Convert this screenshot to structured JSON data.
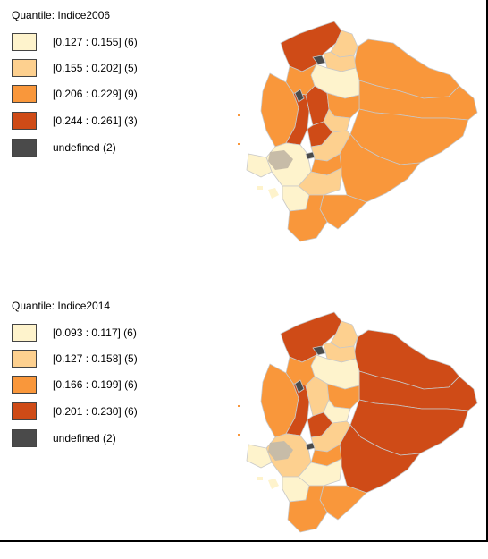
{
  "colors": {
    "class1": "#fef3cc",
    "class2": "#fdd08f",
    "class3": "#f9973b",
    "class4": "#cf4b17",
    "undefined": "#4a4a4a"
  },
  "maps": [
    {
      "legend": {
        "title": "Quantile: Indice2006",
        "items": [
          {
            "label": "[0.127 : 0.155] (6)",
            "color": "#fef3cc"
          },
          {
            "label": "[0.155 : 0.202] (5)",
            "color": "#fdd08f"
          },
          {
            "label": "[0.206 : 0.229] (9)",
            "color": "#f9973b"
          },
          {
            "label": "[0.244 : 0.261] (3)",
            "color": "#cf4b17"
          },
          {
            "label": "undefined (2)",
            "color": "#4a4a4a"
          }
        ]
      }
    },
    {
      "legend": {
        "title": "Quantile: Indice2014",
        "items": [
          {
            "label": "[0.093 : 0.117] (6)",
            "color": "#fef3cc"
          },
          {
            "label": "[0.127 : 0.158] (5)",
            "color": "#fdd08f"
          },
          {
            "label": "[0.166 : 0.199] (6)",
            "color": "#f9973b"
          },
          {
            "label": "[0.201 : 0.230] (6)",
            "color": "#cf4b17"
          },
          {
            "label": "undefined (2)",
            "color": "#4a4a4a"
          }
        ]
      }
    }
  ]
}
